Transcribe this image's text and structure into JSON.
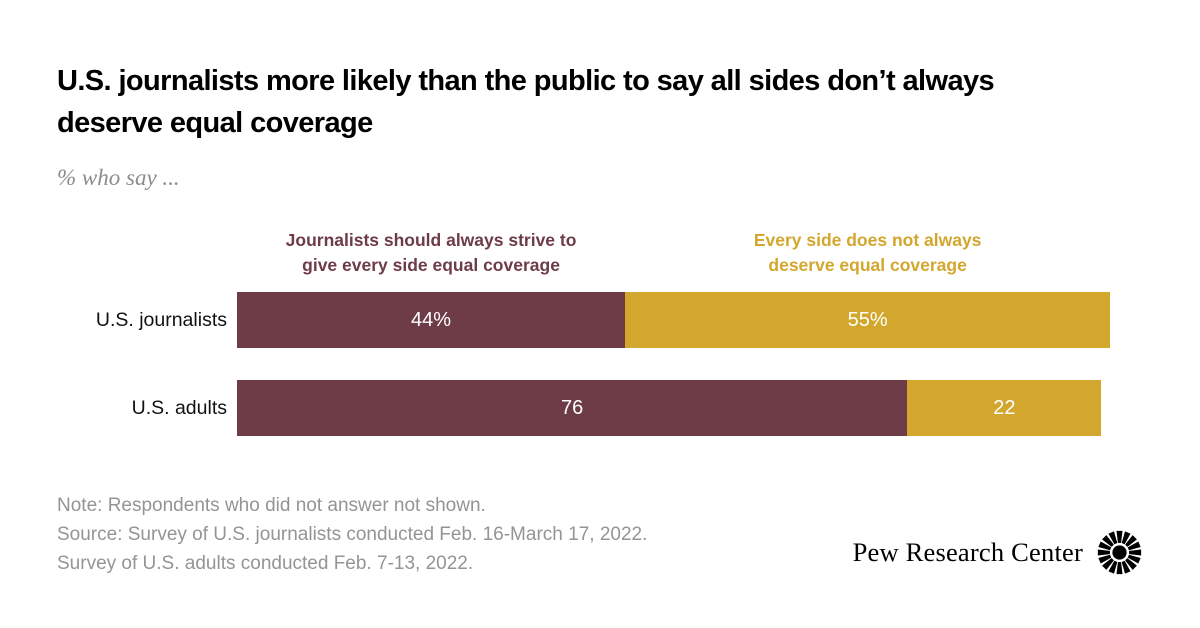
{
  "header": {
    "title_lines": [
      "U.S. journalists more likely than the public to say all sides don’t always",
      "deserve equal coverage"
    ],
    "subtitle": "% who say ..."
  },
  "legend": {
    "left": {
      "lines": [
        "Journalists should always strive to",
        "give every side equal coverage"
      ]
    },
    "right": {
      "lines": [
        "Every side does not always",
        "deserve equal coverage"
      ]
    }
  },
  "chart_data": {
    "type": "bar",
    "orientation": "horizontal",
    "stacked": true,
    "unit": "percent",
    "grid": false,
    "legend_position": "top",
    "xlim": [
      0,
      100
    ],
    "categories": [
      "U.S. journalists",
      "U.S. adults"
    ],
    "series": [
      {
        "name": "Journalists should always strive to give every side equal coverage",
        "color": "#6E3C47",
        "values": [
          44,
          76
        ]
      },
      {
        "name": "Every side does not always deserve equal coverage",
        "color": "#D3A62D",
        "values": [
          55,
          22
        ]
      }
    ],
    "value_labels": [
      [
        "44%",
        "55%"
      ],
      [
        "76",
        "22"
      ]
    ]
  },
  "notes": {
    "lines": [
      "Note: Respondents who did not answer not shown.",
      "Source: Survey of U.S. journalists conducted Feb. 16-March 17, 2022.",
      "Survey of U.S. adults conducted Feb. 7-13, 2022."
    ]
  },
  "footer": {
    "brand": "Pew Research Center"
  },
  "colors": {
    "maroon": "#6E3C47",
    "gold": "#D3A62D",
    "title_text": "#000000",
    "muted_text": "#949494",
    "bar_value_text": "#FFFFFF",
    "background": "#FFFFFF"
  }
}
